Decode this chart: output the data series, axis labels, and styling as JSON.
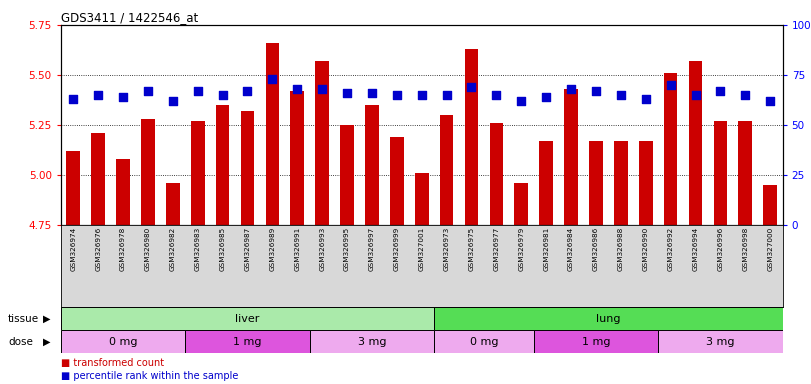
{
  "title": "GDS3411 / 1422546_at",
  "samples": [
    "GSM326974",
    "GSM326976",
    "GSM326978",
    "GSM326980",
    "GSM326982",
    "GSM326983",
    "GSM326985",
    "GSM326987",
    "GSM326989",
    "GSM326991",
    "GSM326993",
    "GSM326995",
    "GSM326997",
    "GSM326999",
    "GSM327001",
    "GSM326973",
    "GSM326975",
    "GSM326977",
    "GSM326979",
    "GSM326981",
    "GSM326984",
    "GSM326986",
    "GSM326988",
    "GSM326990",
    "GSM326992",
    "GSM326994",
    "GSM326996",
    "GSM326998",
    "GSM327000"
  ],
  "bar_values": [
    5.12,
    5.21,
    5.08,
    5.28,
    4.96,
    5.27,
    5.35,
    5.32,
    5.66,
    5.42,
    5.57,
    5.25,
    5.35,
    5.19,
    5.01,
    5.3,
    5.63,
    5.26,
    4.96,
    5.17,
    5.43,
    5.17,
    5.17,
    5.17,
    5.51,
    5.57,
    5.27,
    5.27,
    4.95
  ],
  "percentile_values": [
    63,
    65,
    64,
    67,
    62,
    67,
    65,
    67,
    73,
    68,
    68,
    66,
    66,
    65,
    65,
    65,
    69,
    65,
    62,
    64,
    68,
    67,
    65,
    63,
    70,
    65,
    67,
    65,
    62
  ],
  "bar_color": "#cc0000",
  "dot_color": "#0000cc",
  "ylim_left": [
    4.75,
    5.75
  ],
  "ylim_right": [
    0,
    100
  ],
  "yticks_left": [
    4.75,
    5.0,
    5.25,
    5.5,
    5.75
  ],
  "yticks_right": [
    0,
    25,
    50,
    75,
    100
  ],
  "ytick_labels_right": [
    "0",
    "25",
    "50",
    "75",
    "100%"
  ],
  "tissue_labels": [
    {
      "label": "liver",
      "start": 0,
      "end": 15,
      "color": "#aaeaaa"
    },
    {
      "label": "lung",
      "start": 15,
      "end": 29,
      "color": "#55dd55"
    }
  ],
  "dose_labels": [
    {
      "label": "0 mg",
      "start": 0,
      "end": 5,
      "color": "#eeaaee"
    },
    {
      "label": "1 mg",
      "start": 5,
      "end": 10,
      "color": "#dd55dd"
    },
    {
      "label": "3 mg",
      "start": 10,
      "end": 15,
      "color": "#eeaaee"
    },
    {
      "label": "0 mg",
      "start": 15,
      "end": 19,
      "color": "#eeaaee"
    },
    {
      "label": "1 mg",
      "start": 19,
      "end": 24,
      "color": "#dd55dd"
    },
    {
      "label": "3 mg",
      "start": 24,
      "end": 29,
      "color": "#eeaaee"
    }
  ],
  "tissue_label": "tissue",
  "dose_label": "dose",
  "bar_width": 0.55,
  "dot_size": 28,
  "bg_color": "#ffffff",
  "tick_area_bg": "#d8d8d8",
  "fig_width": 8.11,
  "fig_height": 3.84,
  "dpi": 100
}
